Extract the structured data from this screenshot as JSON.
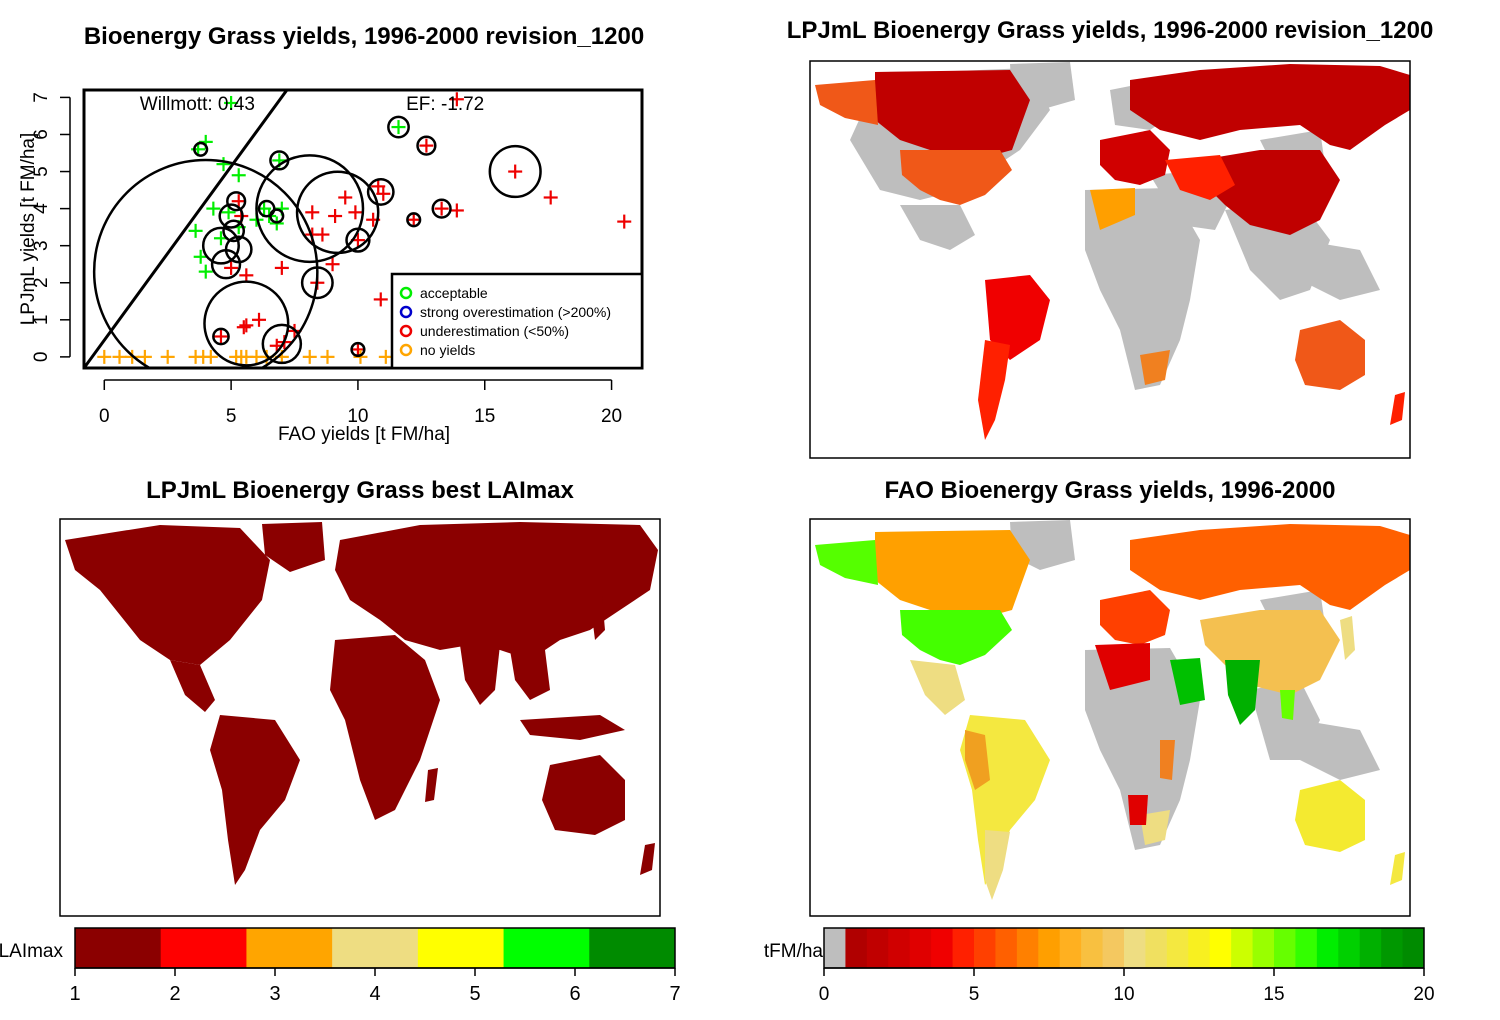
{
  "colors": {
    "acceptable": "#00ee00",
    "overestimation": "#0000cc",
    "underestimation": "#ee0000",
    "no_yields": "#ffa500",
    "no_data_grey": "#bebebe",
    "lai_palette": [
      "#8b0000",
      "#ff0000",
      "#ffa500",
      "#eedd82",
      "#ffff00",
      "#00ff00",
      "#008b00"
    ],
    "yield_palette": [
      "#bebebe",
      "#b00000",
      "#c00000",
      "#d00000",
      "#e00000",
      "#f00000",
      "#ff2000",
      "#ff4000",
      "#ff6000",
      "#ff8000",
      "#ff9f00",
      "#ffb020",
      "#f8c040",
      "#f4c860",
      "#eedd82",
      "#f0e060",
      "#f4e840",
      "#f8f020",
      "#ffff00",
      "#ccff00",
      "#99ff00",
      "#66ff00",
      "#33ff00",
      "#00ee00",
      "#00d000",
      "#00b000",
      "#009800",
      "#008b00"
    ]
  },
  "chart_data": [
    {
      "type": "scatter",
      "title": "Bioenergy Grass yields, 1996-2000 revision_1200",
      "xlabel": "FAO yields [t FM/ha]",
      "ylabel": "LPJmL yields [t FM/ha]",
      "xlim": [
        -0.8,
        21.2
      ],
      "ylim": [
        -0.3,
        7.2
      ],
      "x_ticks": [
        0,
        5,
        10,
        15,
        20
      ],
      "y_ticks": [
        0,
        1,
        2,
        3,
        4,
        5,
        6,
        7
      ],
      "annotations": [
        {
          "text": "Willmott: 0.43",
          "x": 1.4,
          "y": 6.85
        },
        {
          "text": "EF: -1.72",
          "x": 11.9,
          "y": 6.85
        }
      ],
      "reference_line": {
        "x": [
          -0.8,
          7.2
        ],
        "y": [
          -0.3,
          7.2
        ]
      },
      "legend": {
        "position": "bottom-right",
        "entries": [
          {
            "label": "acceptable",
            "color_key": "acceptable"
          },
          {
            "label": "strong overestimation (>200%)",
            "color_key": "overestimation"
          },
          {
            "label": "underestimation (<50%)",
            "color_key": "underestimation"
          },
          {
            "label": "no yields",
            "color_key": "no_yields"
          }
        ]
      },
      "series": [
        {
          "category": "acceptable",
          "points": [
            [
              3.7,
              5.6
            ],
            [
              4.0,
              5.8
            ],
            [
              5.0,
              6.85
            ],
            [
              4.7,
              5.2
            ],
            [
              5.3,
              4.9
            ],
            [
              3.6,
              3.4
            ],
            [
              3.8,
              2.7
            ],
            [
              4.0,
              2.3
            ],
            [
              4.3,
              4.0
            ],
            [
              4.6,
              3.2
            ],
            [
              4.9,
              3.9
            ],
            [
              5.3,
              3.5
            ],
            [
              6.0,
              3.7
            ],
            [
              6.3,
              4.0
            ],
            [
              6.8,
              3.6
            ],
            [
              7.0,
              4.0
            ],
            [
              6.5,
              3.8
            ],
            [
              6.9,
              5.3
            ],
            [
              11.6,
              6.2
            ]
          ]
        },
        {
          "category": "underestimation",
          "points": [
            [
              13.9,
              6.95
            ],
            [
              12.7,
              5.7
            ],
            [
              16.2,
              5.0
            ],
            [
              10.8,
              4.6
            ],
            [
              11.0,
              4.4
            ],
            [
              9.5,
              4.3
            ],
            [
              17.6,
              4.3
            ],
            [
              13.3,
              4.0
            ],
            [
              13.9,
              3.95
            ],
            [
              12.2,
              3.7
            ],
            [
              20.5,
              3.65
            ],
            [
              8.2,
              3.9
            ],
            [
              9.9,
              3.9
            ],
            [
              10.6,
              3.7
            ],
            [
              9.1,
              3.8
            ],
            [
              8.2,
              3.3
            ],
            [
              8.6,
              3.3
            ],
            [
              10.0,
              3.15
            ],
            [
              9.0,
              2.5
            ],
            [
              7.0,
              2.4
            ],
            [
              5.6,
              2.2
            ],
            [
              8.4,
              2.0
            ],
            [
              10.9,
              1.55
            ],
            [
              6.1,
              1.0
            ],
            [
              5.6,
              0.85
            ],
            [
              5.5,
              0.8
            ],
            [
              7.5,
              0.7
            ],
            [
              7.1,
              0.4
            ],
            [
              6.8,
              0.3
            ],
            [
              4.6,
              0.55
            ],
            [
              10.0,
              0.2
            ],
            [
              5.0,
              2.4
            ],
            [
              5.3,
              4.2
            ],
            [
              5.4,
              3.8
            ]
          ]
        },
        {
          "category": "no_yields",
          "points": [
            [
              0.0,
              0
            ],
            [
              0.6,
              0
            ],
            [
              1.1,
              0
            ],
            [
              1.6,
              0
            ],
            [
              2.5,
              0
            ],
            [
              3.6,
              0
            ],
            [
              3.9,
              0
            ],
            [
              4.2,
              0
            ],
            [
              5.2,
              0
            ],
            [
              5.4,
              0
            ],
            [
              5.6,
              0
            ],
            [
              6.0,
              0
            ],
            [
              6.4,
              0
            ],
            [
              7.0,
              0
            ],
            [
              8.1,
              0
            ],
            [
              8.8,
              0
            ],
            [
              10.1,
              0
            ],
            [
              11.1,
              0
            ],
            [
              12.4,
              0
            ],
            [
              13.0,
              0
            ],
            [
              13.8,
              0
            ]
          ]
        }
      ],
      "circles": [
        [
          4.0,
          2.3,
          4.4
        ],
        [
          8.1,
          4.0,
          2.1
        ],
        [
          9.2,
          3.9,
          1.6
        ],
        [
          5.6,
          0.9,
          1.65
        ],
        [
          16.2,
          5.0,
          1.0
        ],
        [
          4.6,
          3.0,
          0.7
        ],
        [
          5.3,
          2.9,
          0.5
        ],
        [
          4.8,
          2.5,
          0.55
        ],
        [
          5.0,
          3.8,
          0.45
        ],
        [
          5.1,
          3.4,
          0.4
        ],
        [
          7.0,
          0.35,
          0.75
        ],
        [
          8.4,
          2.0,
          0.6
        ],
        [
          10.0,
          3.15,
          0.45
        ],
        [
          10.9,
          4.45,
          0.5
        ],
        [
          5.2,
          4.2,
          0.35
        ],
        [
          6.4,
          4.0,
          0.3
        ],
        [
          6.9,
          5.3,
          0.35
        ],
        [
          11.6,
          6.2,
          0.4
        ],
        [
          12.7,
          5.7,
          0.35
        ],
        [
          13.3,
          4.0,
          0.35
        ],
        [
          12.2,
          3.7,
          0.25
        ],
        [
          6.8,
          3.8,
          0.25
        ],
        [
          4.6,
          0.55,
          0.3
        ],
        [
          10.0,
          0.2,
          0.25
        ],
        [
          3.8,
          5.6,
          0.25
        ]
      ]
    },
    {
      "type": "heatmap",
      "title": "LPJmL Bioenergy Grass yields, 1996-2000 revision_1200"
    },
    {
      "type": "heatmap",
      "title": "LPJmL Bioenergy Grass best LAImax",
      "colorbar": {
        "label": "LAImax",
        "min": 1,
        "max": 7,
        "ticks": [
          1,
          2,
          3,
          4,
          5,
          6,
          7
        ]
      }
    },
    {
      "type": "heatmap",
      "title": "FAO Bioenergy Grass yields, 1996-2000",
      "colorbar": {
        "label": "tFM/ha",
        "min": 0,
        "max": 20,
        "ticks": [
          0,
          5,
          10,
          15,
          20
        ]
      }
    }
  ]
}
